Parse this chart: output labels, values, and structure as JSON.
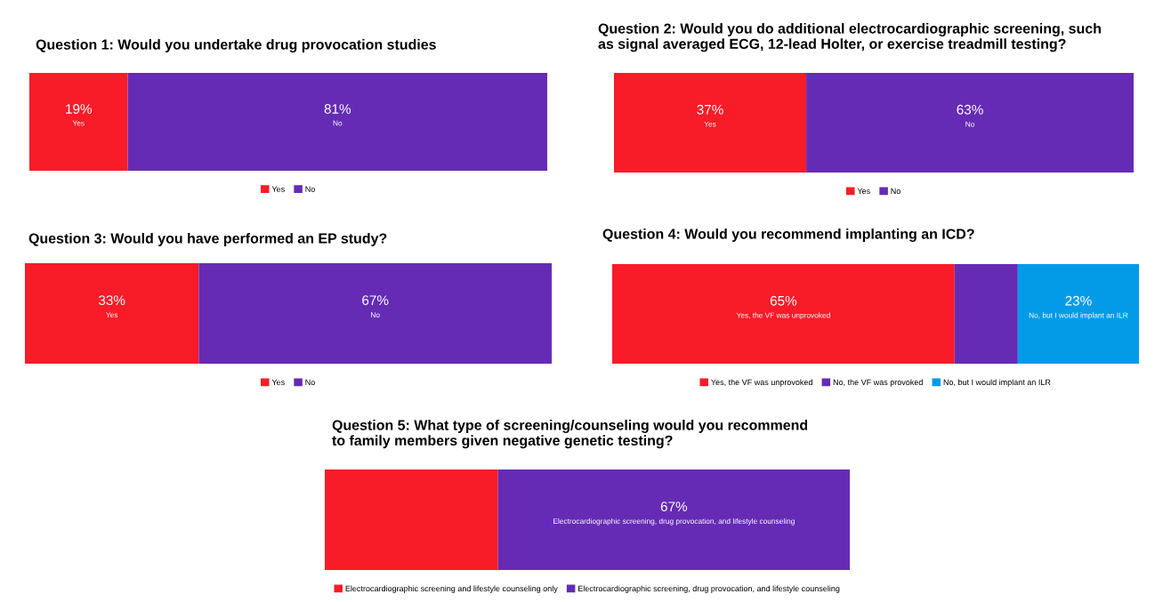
{
  "chart_data": [
    {
      "type": "bar",
      "orientation": "horizontal",
      "stacked": true,
      "title": "Question 1: Would you undertake drug provocation studies",
      "categories": [
        null
      ],
      "xlim": [
        0,
        100
      ],
      "legend": "bottom",
      "series": [
        {
          "name": "Yes",
          "color": "#f81b28",
          "values": [
            19
          ],
          "value_labels": [
            "19%"
          ]
        },
        {
          "name": "No",
          "color": "#652bb5",
          "values": [
            81
          ],
          "value_labels": [
            "81%"
          ]
        }
      ]
    },
    {
      "type": "bar",
      "orientation": "horizontal",
      "stacked": true,
      "title": "Question 2: Would you do additional electrocardiographic screening, such\nas signal averaged ECG, 12-lead Holter, or exercise treadmill testing?",
      "categories": [
        null
      ],
      "xlim": [
        0,
        100
      ],
      "legend": "bottom",
      "series": [
        {
          "name": "Yes",
          "color": "#f81b28",
          "values": [
            37
          ],
          "value_labels": [
            "37%"
          ]
        },
        {
          "name": "No",
          "color": "#652bb5",
          "values": [
            63
          ],
          "value_labels": [
            "63%"
          ]
        }
      ]
    },
    {
      "type": "bar",
      "orientation": "horizontal",
      "stacked": true,
      "title": "Question 3: Would you have performed an EP study?",
      "categories": [
        null
      ],
      "xlim": [
        0,
        100
      ],
      "legend": "bottom",
      "series": [
        {
          "name": "Yes",
          "color": "#f81b28",
          "values": [
            33
          ],
          "value_labels": [
            "33%"
          ]
        },
        {
          "name": "No",
          "color": "#652bb5",
          "values": [
            67
          ],
          "value_labels": [
            "67%"
          ]
        }
      ]
    },
    {
      "type": "bar",
      "orientation": "horizontal",
      "stacked": true,
      "title": "Question 4: Would you recommend implanting an ICD?",
      "categories": [
        null
      ],
      "xlim": [
        0,
        100
      ],
      "legend": "bottom",
      "series": [
        {
          "name": "Yes, the VF was unprovoked",
          "color": "#f81b28",
          "values": [
            65
          ],
          "value_labels": [
            "65%"
          ]
        },
        {
          "name": "No, the VF was provoked",
          "color": "#652bb5",
          "values": [
            12
          ],
          "value_labels": [
            null
          ]
        },
        {
          "name": "No, but I would implant an ILR",
          "color": "#039be8",
          "values": [
            23
          ],
          "value_labels": [
            "23%"
          ]
        }
      ]
    },
    {
      "type": "bar",
      "orientation": "horizontal",
      "stacked": true,
      "title": "Question 5: What type of screening/counseling would you recommend\nto family members given negative genetic testing?",
      "categories": [
        null
      ],
      "xlim": [
        0,
        100
      ],
      "legend": "bottom",
      "series": [
        {
          "name": "Electrocardiographic screening and lifestyle counseling only",
          "color": "#f81b28",
          "values": [
            33
          ],
          "value_labels": [
            null
          ]
        },
        {
          "name": "Electrocardiographic screening, drug provocation, and lifestyle counseling",
          "color": "#652bb5",
          "values": [
            67
          ],
          "value_labels": [
            "67%"
          ]
        }
      ]
    }
  ]
}
